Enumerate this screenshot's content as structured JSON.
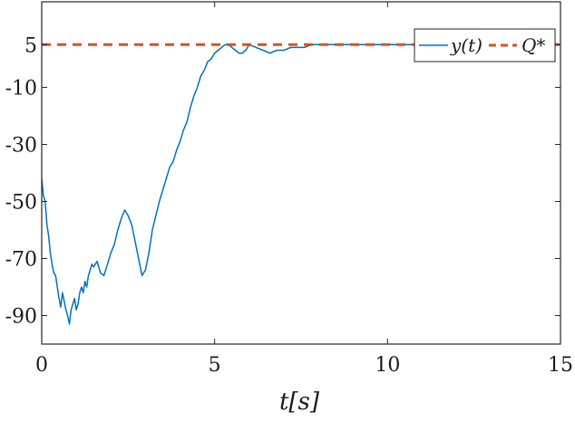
{
  "chart_data": {
    "type": "line",
    "xlabel": "t[s]",
    "ylabel": "",
    "xlim": [
      0,
      15
    ],
    "ylim": [
      -100,
      20
    ],
    "x_ticks": [
      0,
      5,
      10,
      15
    ],
    "y_ticks": [
      -90,
      -70,
      -50,
      -30,
      -10,
      5
    ],
    "x_tick_labels": [
      "0",
      "5",
      "10",
      "15"
    ],
    "y_tick_labels": [
      "-90",
      "-70",
      "-50",
      "-30",
      "-10",
      "5"
    ],
    "grid": false,
    "legend_position": "top-right",
    "series": [
      {
        "name": "y(t)",
        "style": "solid",
        "color": "#0072BD",
        "x": [
          0.0,
          0.05,
          0.1,
          0.15,
          0.2,
          0.25,
          0.3,
          0.35,
          0.4,
          0.45,
          0.5,
          0.55,
          0.6,
          0.65,
          0.7,
          0.75,
          0.8,
          0.85,
          0.9,
          0.95,
          1.0,
          1.05,
          1.1,
          1.15,
          1.2,
          1.25,
          1.3,
          1.35,
          1.4,
          1.45,
          1.5,
          1.6,
          1.7,
          1.8,
          1.9,
          2.0,
          2.1,
          2.2,
          2.3,
          2.4,
          2.5,
          2.6,
          2.7,
          2.8,
          2.9,
          3.0,
          3.1,
          3.2,
          3.3,
          3.4,
          3.5,
          3.6,
          3.7,
          3.8,
          3.9,
          4.0,
          4.1,
          4.2,
          4.3,
          4.4,
          4.5,
          4.6,
          4.7,
          4.8,
          4.9,
          5.0,
          5.1,
          5.2,
          5.3,
          5.4,
          5.5,
          5.6,
          5.7,
          5.8,
          5.9,
          6.0,
          6.2,
          6.4,
          6.6,
          6.8,
          7.0,
          7.2,
          7.4,
          7.6,
          7.8,
          8.0,
          8.5,
          9.0,
          9.5,
          10.0,
          10.5,
          11.0,
          11.5,
          12.0,
          12.5,
          13.0,
          13.5,
          14.0,
          14.5,
          15.0
        ],
        "y": [
          -42,
          -48,
          -50,
          -58,
          -62,
          -68,
          -72,
          -75,
          -76,
          -80,
          -84,
          -87,
          -82,
          -85,
          -88,
          -90,
          -93,
          -88,
          -86,
          -84,
          -88,
          -86,
          -82,
          -80,
          -82,
          -78,
          -80,
          -76,
          -74,
          -72,
          -73,
          -71,
          -75,
          -76,
          -72,
          -68,
          -65,
          -60,
          -56,
          -53,
          -55,
          -58,
          -64,
          -70,
          -76,
          -74,
          -68,
          -60,
          -55,
          -50,
          -46,
          -42,
          -38,
          -36,
          -32,
          -29,
          -25,
          -22,
          -17,
          -13,
          -10,
          -6,
          -4,
          -1,
          0,
          2,
          3,
          4,
          5,
          5,
          4,
          3,
          2,
          2,
          3,
          5,
          4,
          3,
          2,
          3,
          3,
          4,
          4,
          4,
          5,
          5,
          5,
          5,
          5,
          5,
          5,
          5,
          5,
          5,
          5,
          5,
          5,
          5,
          5,
          5
        ]
      },
      {
        "name": "Q*",
        "style": "dashed",
        "color": "#D95319",
        "x": [
          0,
          15
        ],
        "y": [
          5,
          5
        ]
      }
    ]
  }
}
